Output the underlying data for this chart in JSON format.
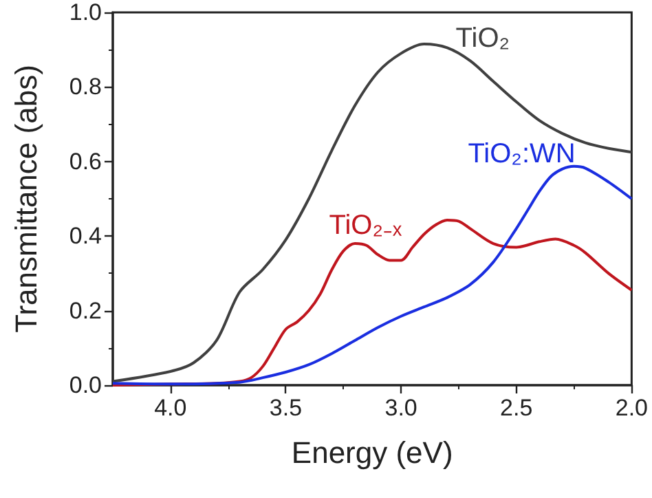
{
  "chart_data": {
    "type": "line",
    "xlabel": "Energy (eV)",
    "ylabel": "Transmittance (abs)",
    "xlim": [
      4.25,
      2.0
    ],
    "xticks": [
      {
        "value": 4.0,
        "label": "4.0"
      },
      {
        "value": 3.5,
        "label": "3.5"
      },
      {
        "value": 3.0,
        "label": "3.0"
      },
      {
        "value": 2.5,
        "label": "2.5"
      },
      {
        "value": 2.0,
        "label": "2.0"
      }
    ],
    "ylim": [
      0,
      1.0
    ],
    "yticks": [
      {
        "value": 0,
        "label": "0.0"
      },
      {
        "value": 0.2,
        "label": "0.2"
      },
      {
        "value": 0.4,
        "label": "0.4"
      },
      {
        "value": 0.6,
        "label": "0.6"
      },
      {
        "value": 0.8,
        "label": "0.8"
      },
      {
        "value": 1.0,
        "label": "1.0"
      }
    ],
    "grid": false,
    "legend": false,
    "series": [
      {
        "name": "TiO₂",
        "color": "#404040",
        "x": [
          4.25,
          4.0,
          3.9,
          3.8,
          3.7,
          3.6,
          3.5,
          3.4,
          3.3,
          3.2,
          3.1,
          3.0,
          2.9,
          2.8,
          2.7,
          2.6,
          2.5,
          2.4,
          2.3,
          2.2,
          2.1,
          2.0
        ],
        "values": [
          0.01,
          0.037,
          0.06,
          0.12,
          0.25,
          0.31,
          0.39,
          0.5,
          0.63,
          0.75,
          0.84,
          0.89,
          0.915,
          0.905,
          0.87,
          0.815,
          0.76,
          0.71,
          0.675,
          0.65,
          0.635,
          0.625
        ]
      },
      {
        "name": "TiO₂₋ₓ",
        "color": "#c0161e",
        "x": [
          4.25,
          4.0,
          3.8,
          3.7,
          3.65,
          3.6,
          3.55,
          3.5,
          3.45,
          3.4,
          3.35,
          3.3,
          3.25,
          3.2,
          3.15,
          3.1,
          3.05,
          3.0,
          2.95,
          2.9,
          2.85,
          2.8,
          2.75,
          2.7,
          2.6,
          2.5,
          2.4,
          2.33,
          2.25,
          2.2,
          2.1,
          2.0
        ],
        "values": [
          0.0,
          0.003,
          0.005,
          0.01,
          0.02,
          0.05,
          0.1,
          0.15,
          0.17,
          0.2,
          0.245,
          0.31,
          0.36,
          0.38,
          0.375,
          0.35,
          0.335,
          0.335,
          0.37,
          0.405,
          0.43,
          0.443,
          0.44,
          0.42,
          0.38,
          0.37,
          0.385,
          0.392,
          0.375,
          0.355,
          0.3,
          0.255
        ]
      },
      {
        "name": "TiO₂:WN",
        "color": "#1a2ee0",
        "x": [
          4.25,
          4.0,
          3.7,
          3.6,
          3.5,
          3.4,
          3.3,
          3.2,
          3.1,
          3.0,
          2.9,
          2.8,
          2.7,
          2.6,
          2.5,
          2.45,
          2.4,
          2.35,
          2.3,
          2.25,
          2.2,
          2.1,
          2.0
        ],
        "values": [
          0.005,
          0.003,
          0.008,
          0.02,
          0.035,
          0.055,
          0.085,
          0.12,
          0.155,
          0.185,
          0.21,
          0.235,
          0.27,
          0.33,
          0.42,
          0.47,
          0.52,
          0.56,
          0.58,
          0.587,
          0.582,
          0.545,
          0.5
        ]
      }
    ]
  }
}
